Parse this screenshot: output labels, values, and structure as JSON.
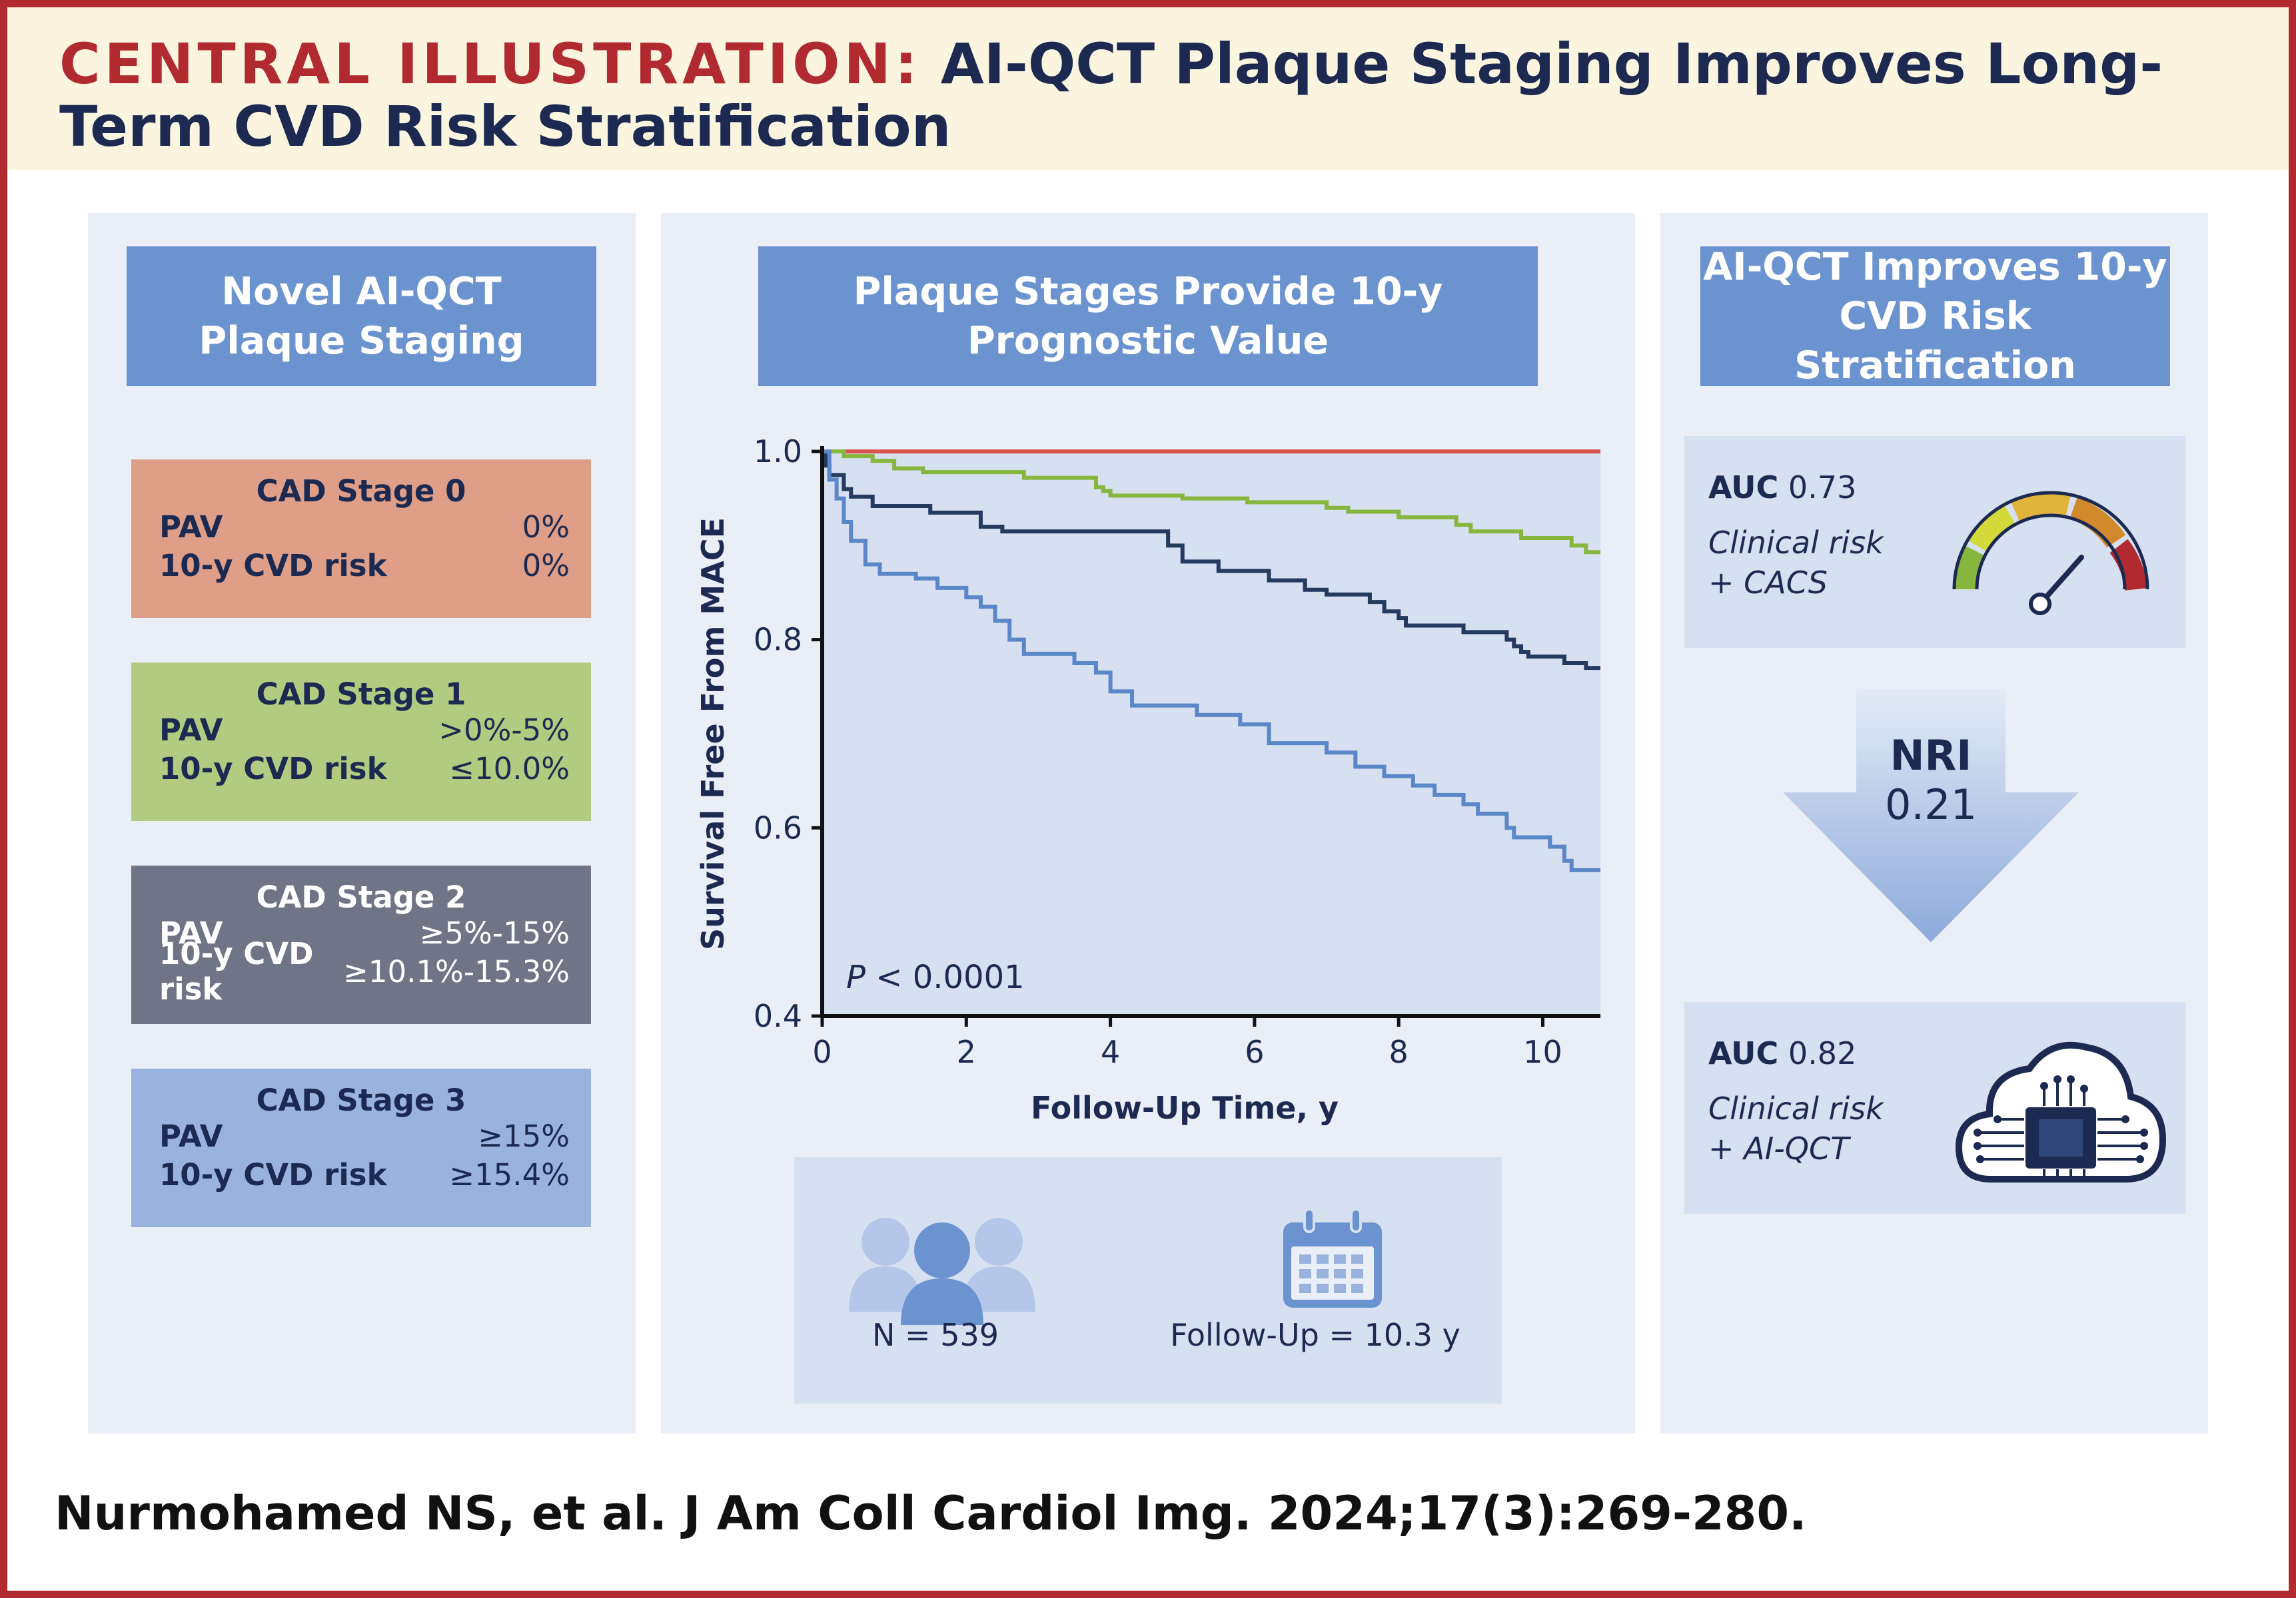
{
  "header": {
    "label": "CENTRAL ILLUSTRATION:",
    "title": "AI-QCT Plaque Staging Improves Long-Term CVD Risk Stratification"
  },
  "left_panel": {
    "heading": "Novel AI-QCT\nPlaque Staging",
    "stages": [
      {
        "title": "CAD Stage 0",
        "pav_label": "PAV",
        "pav_value": "0%",
        "risk_label": "10-y CVD risk",
        "risk_value": "0%",
        "color": "#de9e87"
      },
      {
        "title": "CAD Stage 1",
        "pav_label": "PAV",
        "pav_value": ">0%-5%",
        "risk_label": "10-y CVD risk",
        "risk_value": "≤10.0%",
        "color": "#b3cb80"
      },
      {
        "title": "CAD Stage 2",
        "pav_label": "PAV",
        "pav_value": "≥5%-15%",
        "risk_label": "10-y CVD risk",
        "risk_value": "≥10.1%-15.3%",
        "color": "#6f7486"
      },
      {
        "title": "CAD Stage 3",
        "pav_label": "PAV",
        "pav_value": "≥15%",
        "risk_label": "10-y CVD risk",
        "risk_value": "≥15.4%",
        "color": "#9ab3de"
      }
    ]
  },
  "middle_panel": {
    "heading": "Plaque Stages Provide 10-y\nPrognostic Value",
    "stats": {
      "n_label": "N = 539",
      "followup_label": "Follow-Up = 10.3 y"
    }
  },
  "chart_data": {
    "type": "line",
    "xlabel": "Follow-Up Time, y",
    "ylabel": "Survival Free From MACE",
    "xlim": [
      0,
      10.8
    ],
    "ylim": [
      0.4,
      1.0
    ],
    "x_ticks": [
      0,
      2,
      4,
      6,
      8,
      10
    ],
    "y_ticks": [
      0.4,
      0.6,
      0.8,
      1.0
    ],
    "y_tick_labels": [
      "0.4",
      "0.6",
      "0.8",
      "1.0"
    ],
    "annotation": {
      "p_italic": "P",
      "p_rest": " < 0.0001"
    },
    "series": [
      {
        "color": "#d8524e",
        "steps": [
          [
            0,
            1.0
          ],
          [
            10.8,
            1.0
          ]
        ]
      },
      {
        "color": "#86b63e",
        "steps": [
          [
            0,
            1.0
          ],
          [
            0.3,
            0.995
          ],
          [
            0.7,
            0.99
          ],
          [
            1.0,
            0.982
          ],
          [
            1.4,
            0.978
          ],
          [
            2.8,
            0.972
          ],
          [
            3.8,
            0.962
          ],
          [
            3.9,
            0.958
          ],
          [
            4.0,
            0.953
          ],
          [
            5.0,
            0.95
          ],
          [
            5.9,
            0.946
          ],
          [
            7.0,
            0.94
          ],
          [
            7.3,
            0.936
          ],
          [
            8.0,
            0.93
          ],
          [
            8.8,
            0.922
          ],
          [
            9.0,
            0.915
          ],
          [
            9.7,
            0.908
          ],
          [
            10.4,
            0.9
          ],
          [
            10.6,
            0.893
          ],
          [
            10.8,
            0.893
          ]
        ]
      },
      {
        "color": "#243a5e",
        "steps": [
          [
            0,
            1.0
          ],
          [
            0.05,
            0.985
          ],
          [
            0.1,
            0.975
          ],
          [
            0.3,
            0.96
          ],
          [
            0.4,
            0.952
          ],
          [
            0.7,
            0.942
          ],
          [
            1.5,
            0.935
          ],
          [
            2.2,
            0.92
          ],
          [
            2.5,
            0.915
          ],
          [
            4.8,
            0.9
          ],
          [
            5.0,
            0.883
          ],
          [
            5.5,
            0.873
          ],
          [
            6.2,
            0.863
          ],
          [
            6.7,
            0.853
          ],
          [
            7.0,
            0.848
          ],
          [
            7.6,
            0.84
          ],
          [
            7.8,
            0.83
          ],
          [
            8.0,
            0.823
          ],
          [
            8.1,
            0.815
          ],
          [
            8.9,
            0.808
          ],
          [
            9.5,
            0.8
          ],
          [
            9.6,
            0.793
          ],
          [
            9.7,
            0.787
          ],
          [
            9.8,
            0.782
          ],
          [
            10.3,
            0.775
          ],
          [
            10.6,
            0.77
          ],
          [
            10.8,
            0.77
          ]
        ]
      },
      {
        "color": "#5b86c8",
        "steps": [
          [
            0,
            1.0
          ],
          [
            0.1,
            0.97
          ],
          [
            0.2,
            0.95
          ],
          [
            0.3,
            0.925
          ],
          [
            0.4,
            0.905
          ],
          [
            0.6,
            0.88
          ],
          [
            0.8,
            0.87
          ],
          [
            1.3,
            0.865
          ],
          [
            1.6,
            0.855
          ],
          [
            2.0,
            0.845
          ],
          [
            2.2,
            0.835
          ],
          [
            2.4,
            0.82
          ],
          [
            2.6,
            0.8
          ],
          [
            2.8,
            0.785
          ],
          [
            3.5,
            0.775
          ],
          [
            3.8,
            0.765
          ],
          [
            4.0,
            0.745
          ],
          [
            4.3,
            0.73
          ],
          [
            5.2,
            0.72
          ],
          [
            5.8,
            0.71
          ],
          [
            6.2,
            0.69
          ],
          [
            7.0,
            0.68
          ],
          [
            7.4,
            0.665
          ],
          [
            7.8,
            0.655
          ],
          [
            8.2,
            0.645
          ],
          [
            8.5,
            0.635
          ],
          [
            8.9,
            0.625
          ],
          [
            9.1,
            0.615
          ],
          [
            9.5,
            0.6
          ],
          [
            9.6,
            0.59
          ],
          [
            10.1,
            0.58
          ],
          [
            10.3,
            0.565
          ],
          [
            10.4,
            0.555
          ],
          [
            10.8,
            0.555
          ]
        ]
      }
    ]
  },
  "right_panel": {
    "heading": "AI-QCT Improves 10-y\nCVD Risk Stratification",
    "top_box": {
      "auc_label": "AUC",
      "auc_value": "0.73",
      "model": "Clinical risk\n+ CACS",
      "icon": "gauge-icon"
    },
    "arrow": {
      "label": "NRI",
      "value": "0.21"
    },
    "bottom_box": {
      "auc_label": "AUC",
      "auc_value": "0.82",
      "model": "Clinical risk\n+ AI-QCT",
      "icon": "cloud-chip-icon"
    }
  },
  "citation": "Nurmohamed NS, et al. J Am Coll Cardiol Img. 2024;17(3):269-280."
}
